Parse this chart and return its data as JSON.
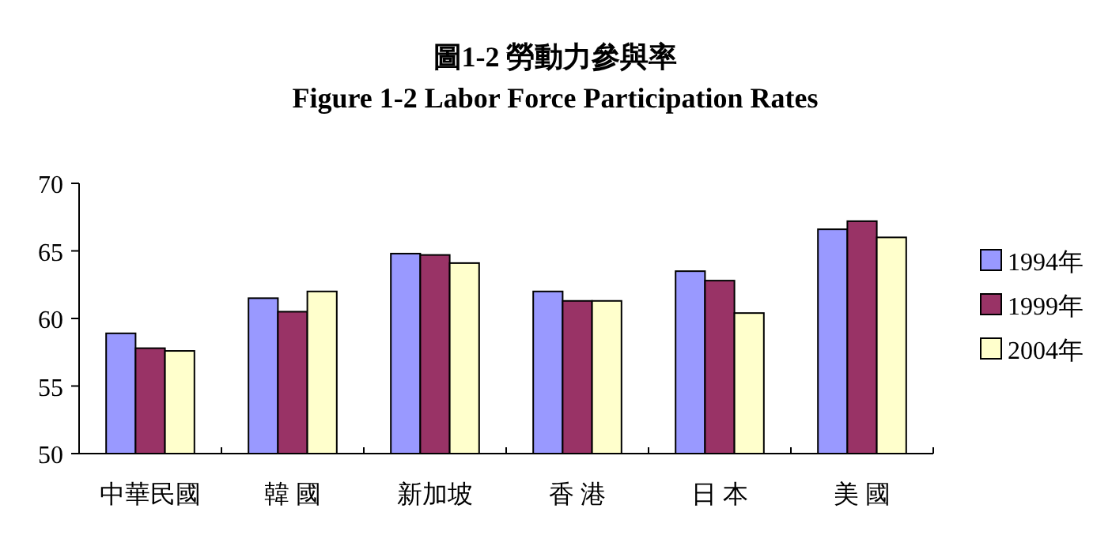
{
  "chart_data": {
    "type": "bar",
    "title": "圖1-2 勞動力參與率",
    "subtitle": "Figure 1-2 Labor Force Participation Rates",
    "categories": [
      "中華民國",
      "韓 國",
      "新加坡",
      "香 港",
      "日 本",
      "美 國"
    ],
    "series": [
      {
        "name": "1994年",
        "color": "#9999ff",
        "values": [
          58.9,
          61.5,
          64.8,
          62.0,
          63.5,
          66.6
        ]
      },
      {
        "name": "1999年",
        "color": "#993366",
        "values": [
          57.8,
          60.5,
          64.7,
          61.3,
          62.8,
          67.2
        ]
      },
      {
        "name": "2004年",
        "color": "#ffffcc",
        "values": [
          57.6,
          62.0,
          64.1,
          61.3,
          60.4,
          66.0
        ]
      }
    ],
    "ylim": [
      50,
      70
    ],
    "yticks": [
      50,
      55,
      60,
      65,
      70
    ],
    "grid": false,
    "legend": "right"
  }
}
